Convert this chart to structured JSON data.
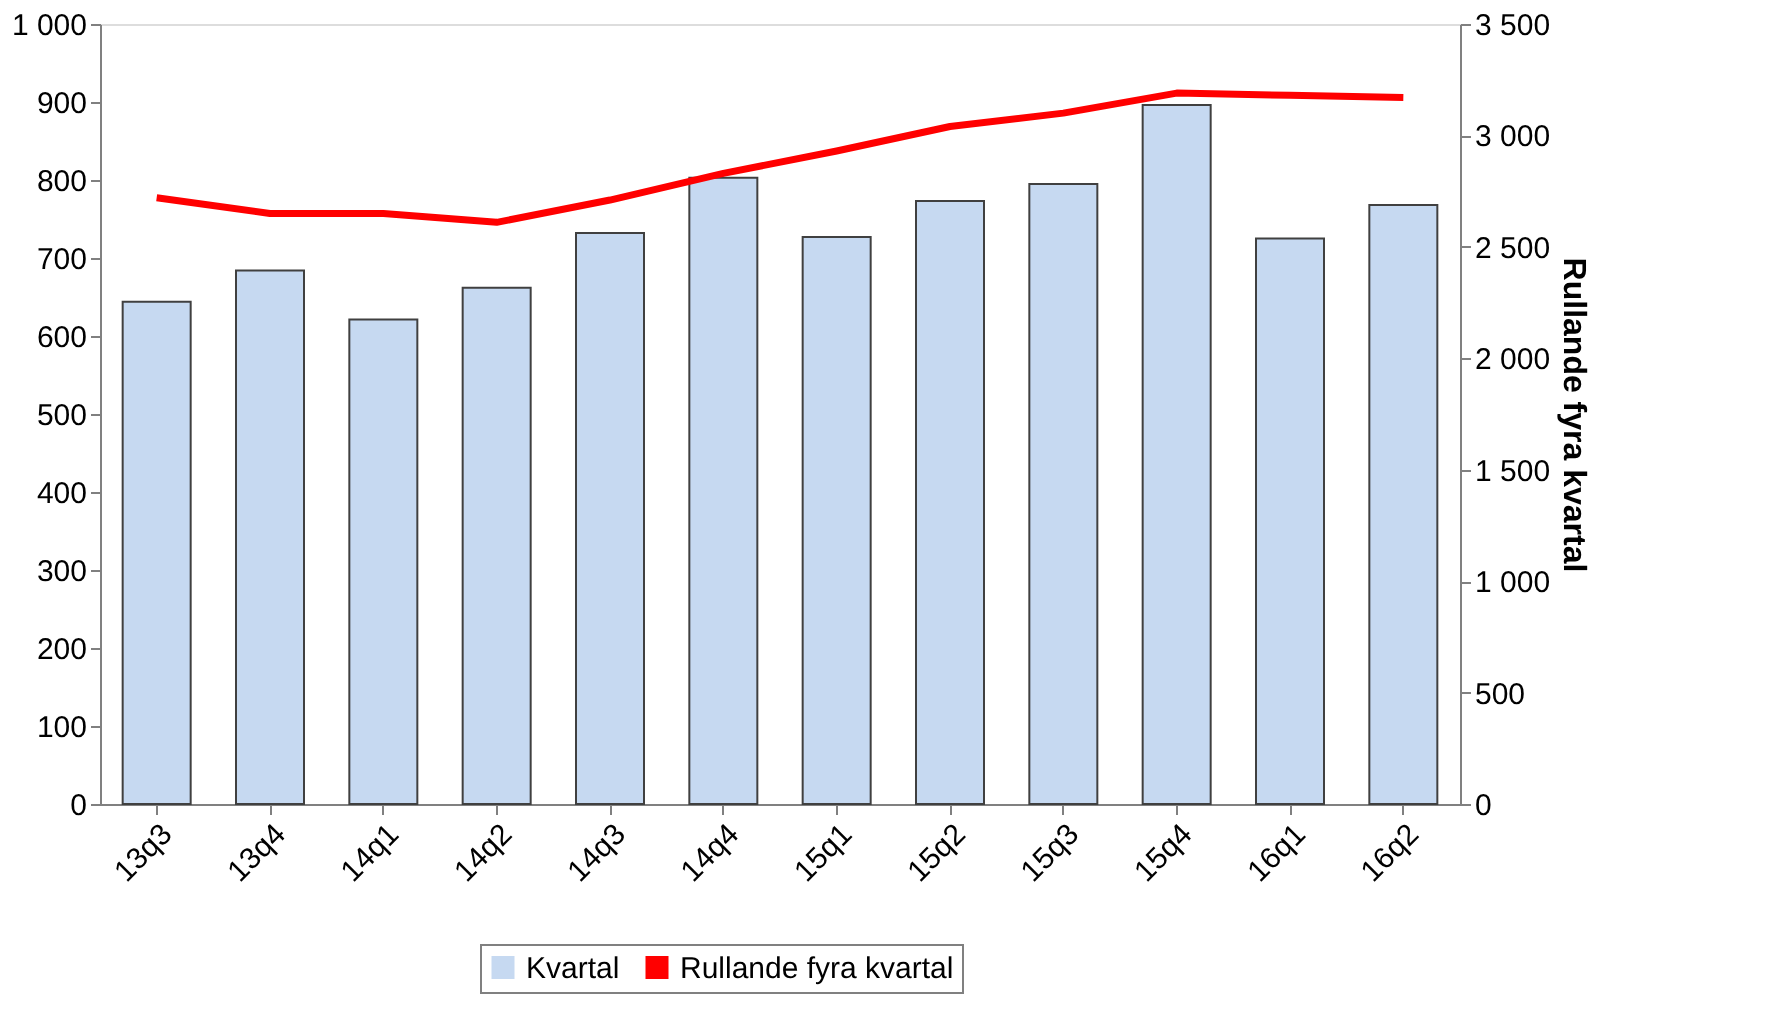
{
  "chart_data": {
    "type": "bar",
    "y2label": "Rullande fyra kvartal",
    "categories": [
      "13q3",
      "13q4",
      "14q1",
      "14q2",
      "14q3",
      "14q4",
      "15q1",
      "15q2",
      "15q3",
      "15q4",
      "16q1",
      "16q2"
    ],
    "series": [
      {
        "name": "Kvartal",
        "color": "#c6d9f1",
        "values": [
          644,
          684,
          621,
          662,
          732,
          803,
          727,
          773,
          795,
          896,
          725,
          768
        ]
      },
      {
        "name": "Rullande fyra kvartal",
        "type": "line",
        "axis": "y2",
        "color": "#ff0000",
        "values": [
          2720,
          2650,
          2650,
          2610,
          2710,
          2830,
          2930,
          3040,
          3100,
          3190,
          3180,
          3170
        ]
      }
    ],
    "ylim": [
      0,
      1000
    ],
    "yticks": [
      0,
      100,
      200,
      300,
      400,
      500,
      600,
      700,
      800,
      900,
      {
        "value": 1000,
        "label": "1 000"
      }
    ],
    "y2lim": [
      0,
      3500
    ],
    "y2ticks": [
      0,
      500,
      {
        "value": 1000,
        "label": "1 000"
      },
      {
        "value": 1500,
        "label": "1 500"
      },
      {
        "value": 2000,
        "label": "2 000"
      },
      {
        "value": 2500,
        "label": "2 500"
      },
      {
        "value": 3000,
        "label": "3 000"
      },
      {
        "value": 3500,
        "label": "3 500"
      }
    ],
    "grid": false,
    "legend": "bottom",
    "marker": "none",
    "line_style": "solid"
  }
}
